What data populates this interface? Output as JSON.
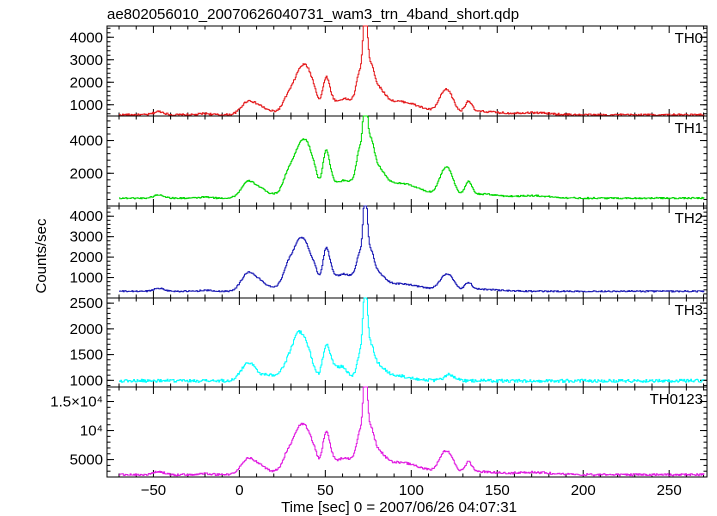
{
  "title": "ae802056010_20070626040731_wam3_trn_4band_short.qdp",
  "chart_data": {
    "type": "line",
    "title": "ae802056010_20070626040731_wam3_trn_4band_short.qdp",
    "xlabel": "Time [sec] 0 = 2007/06/26 04:07:31",
    "ylabel": "Counts/sec",
    "xlim": [
      -77,
      272
    ],
    "x_ticks": [
      -50,
      0,
      50,
      100,
      150,
      200,
      250
    ],
    "x_tick_labels": [
      "−50",
      "0",
      "50",
      "100",
      "150",
      "200",
      "250"
    ],
    "grid": false,
    "series": [
      {
        "name": "TH0",
        "color": "#e41a1c",
        "ylim": [
          500,
          4500
        ],
        "y_ticks": [
          1000,
          2000,
          3000,
          4000
        ],
        "y_tick_labels": [
          "1000",
          "2000",
          "3000",
          "4000"
        ],
        "baseline": 550,
        "noise": 45,
        "events": [
          [
            -47,
            3,
            150
          ],
          [
            -20,
            3,
            60
          ],
          [
            5,
            4,
            600
          ],
          [
            12,
            3,
            200
          ],
          [
            18,
            6,
            150
          ],
          [
            28,
            3,
            700
          ],
          [
            33,
            3,
            900
          ],
          [
            36,
            3,
            1000
          ],
          [
            40,
            3,
            1500
          ],
          [
            44,
            2,
            500
          ],
          [
            50,
            2,
            1300
          ],
          [
            53,
            3,
            600
          ],
          [
            60,
            3,
            600
          ],
          [
            66,
            3,
            500
          ],
          [
            70,
            2,
            1600
          ],
          [
            73,
            1.2,
            3600
          ],
          [
            76,
            2,
            1500
          ],
          [
            80,
            4,
            900
          ],
          [
            90,
            10,
            400
          ],
          [
            100,
            12,
            250
          ],
          [
            118,
            3,
            600
          ],
          [
            122,
            3,
            700
          ],
          [
            133,
            2,
            500
          ],
          [
            140,
            10,
            150
          ],
          [
            170,
            10,
            100
          ]
        ]
      },
      {
        "name": "TH1",
        "color": "#00d700",
        "ylim": [
          0,
          5500
        ],
        "y_ticks": [
          2000,
          4000
        ],
        "y_tick_labels": [
          "2000",
          "4000"
        ],
        "baseline": 480,
        "noise": 45,
        "events": [
          [
            -47,
            3,
            200
          ],
          [
            -20,
            3,
            70
          ],
          [
            5,
            4,
            1000
          ],
          [
            12,
            3,
            300
          ],
          [
            18,
            6,
            250
          ],
          [
            28,
            3,
            1300
          ],
          [
            33,
            3,
            1500
          ],
          [
            36,
            3,
            1600
          ],
          [
            40,
            3,
            2400
          ],
          [
            44,
            2,
            800
          ],
          [
            50,
            2,
            2300
          ],
          [
            53,
            3,
            1000
          ],
          [
            60,
            3,
            900
          ],
          [
            66,
            3,
            800
          ],
          [
            70,
            2,
            2500
          ],
          [
            73,
            1.2,
            4700
          ],
          [
            76,
            2,
            2400
          ],
          [
            80,
            4,
            1400
          ],
          [
            90,
            10,
            600
          ],
          [
            100,
            12,
            400
          ],
          [
            118,
            3,
            1000
          ],
          [
            122,
            3,
            1200
          ],
          [
            133,
            2,
            800
          ],
          [
            140,
            10,
            250
          ],
          [
            170,
            10,
            150
          ]
        ]
      },
      {
        "name": "TH2",
        "color": "#1a1ab4",
        "ylim": [
          0,
          4500
        ],
        "y_ticks": [
          1000,
          2000,
          3000,
          4000
        ],
        "y_tick_labels": [
          "1000",
          "2000",
          "3000",
          "4000"
        ],
        "baseline": 330,
        "noise": 35,
        "events": [
          [
            -47,
            3,
            150
          ],
          [
            -20,
            3,
            50
          ],
          [
            5,
            4,
            900
          ],
          [
            12,
            3,
            250
          ],
          [
            18,
            6,
            200
          ],
          [
            28,
            3,
            1100
          ],
          [
            33,
            3,
            1200
          ],
          [
            36,
            3,
            1300
          ],
          [
            40,
            3,
            1400
          ],
          [
            44,
            2,
            600
          ],
          [
            50,
            2,
            1600
          ],
          [
            53,
            3,
            800
          ],
          [
            60,
            3,
            700
          ],
          [
            66,
            3,
            600
          ],
          [
            70,
            2,
            1500
          ],
          [
            73,
            1.2,
            3800
          ],
          [
            76,
            2,
            1400
          ],
          [
            80,
            4,
            700
          ],
          [
            90,
            10,
            250
          ],
          [
            100,
            12,
            150
          ],
          [
            118,
            3,
            400
          ],
          [
            122,
            3,
            600
          ],
          [
            133,
            2,
            350
          ],
          [
            140,
            10,
            100
          ]
        ]
      },
      {
        "name": "TH3",
        "color": "#00ffff",
        "ylim": [
          870,
          2600
        ],
        "y_ticks": [
          1000,
          1500,
          2000,
          2500
        ],
        "y_tick_labels": [
          "1000",
          "1500",
          "2000",
          "2500"
        ],
        "baseline": 990,
        "noise": 30,
        "events": [
          [
            5,
            4,
            350
          ],
          [
            18,
            6,
            120
          ],
          [
            28,
            3,
            300
          ],
          [
            33,
            3,
            550
          ],
          [
            36,
            3,
            400
          ],
          [
            40,
            3,
            450
          ],
          [
            50,
            2,
            500
          ],
          [
            53,
            3,
            300
          ],
          [
            60,
            3,
            250
          ],
          [
            70,
            2,
            500
          ],
          [
            73,
            1.2,
            1600
          ],
          [
            76,
            2,
            500
          ],
          [
            80,
            4,
            250
          ],
          [
            90,
            10,
            100
          ],
          [
            122,
            3,
            120
          ]
        ]
      },
      {
        "name": "TH0123",
        "color": "#e01ce0",
        "ylim": [
          2000,
          17500
        ],
        "y_ticks": [
          5000,
          10000,
          15000
        ],
        "y_tick_labels": [
          "5000",
          "10⁴",
          "1.5×10⁴"
        ],
        "baseline": 2400,
        "noise": 180,
        "events": [
          [
            -47,
            3,
            500
          ],
          [
            -20,
            3,
            200
          ],
          [
            5,
            4,
            2800
          ],
          [
            12,
            3,
            800
          ],
          [
            18,
            6,
            600
          ],
          [
            28,
            3,
            3300
          ],
          [
            33,
            3,
            3800
          ],
          [
            36,
            3,
            4200
          ],
          [
            40,
            3,
            5200
          ],
          [
            44,
            2,
            2000
          ],
          [
            50,
            2,
            5800
          ],
          [
            53,
            3,
            2600
          ],
          [
            60,
            3,
            2400
          ],
          [
            66,
            3,
            2000
          ],
          [
            70,
            2,
            6000
          ],
          [
            73,
            1.2,
            13800
          ],
          [
            76,
            2,
            5500
          ],
          [
            80,
            4,
            3000
          ],
          [
            90,
            10,
            1400
          ],
          [
            100,
            12,
            900
          ],
          [
            118,
            3,
            2200
          ],
          [
            122,
            3,
            2600
          ],
          [
            133,
            2,
            1800
          ],
          [
            140,
            10,
            500
          ],
          [
            170,
            10,
            400
          ]
        ]
      }
    ]
  }
}
